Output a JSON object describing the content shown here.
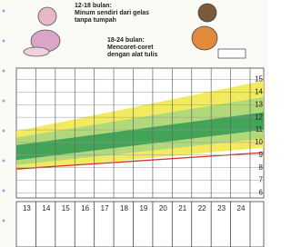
{
  "chart_data": {
    "type": "band",
    "notes": [
      "12-18 bulan:",
      "Minum sendiri dari gelas",
      "tanpa tumpah",
      "18-24 bulan:",
      "Mencoret-coret",
      "dengan alat tulis"
    ],
    "x": [
      12,
      24.7
    ],
    "bands": [
      {
        "color": "#f2e94e",
        "lower": [
          10.4,
          13.6
        ],
        "upper": [
          10.9,
          14.9
        ]
      },
      {
        "color": "#a9d46a",
        "lower": [
          9.8,
          12.4
        ],
        "upper": [
          10.4,
          13.6
        ]
      },
      {
        "color": "#2f9a45",
        "lower": [
          8.6,
          11.0
        ],
        "upper": [
          9.8,
          12.4
        ]
      },
      {
        "color": "#a9d46a",
        "lower": [
          8.2,
          10.3
        ],
        "upper": [
          8.6,
          11.0
        ]
      },
      {
        "color": "#f2e94e",
        "lower": [
          7.8,
          9.6
        ],
        "upper": [
          8.2,
          10.3
        ]
      }
    ],
    "line": {
      "color": "#d8302a",
      "values": [
        7.9,
        9.2
      ]
    },
    "xlim": [
      12,
      24.7
    ],
    "ylim": [
      5.6,
      15.9
    ],
    "xticks": [
      13,
      14,
      15,
      16,
      17,
      18,
      19,
      20,
      21,
      22,
      23,
      24
    ],
    "yticks": [
      6,
      7,
      8,
      9,
      10,
      11,
      12,
      13,
      14,
      15
    ],
    "grid": true
  }
}
